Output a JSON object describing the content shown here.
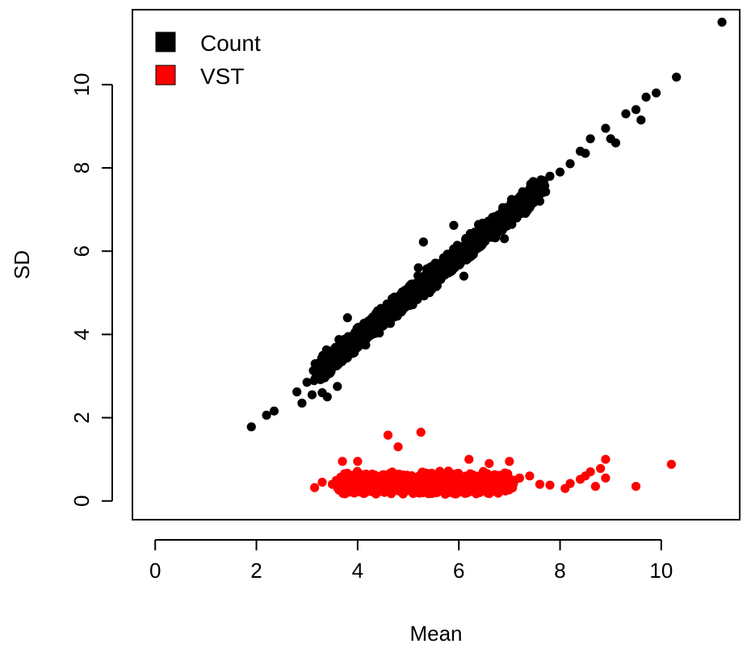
{
  "chart_data": {
    "type": "scatter",
    "xlabel": "Mean",
    "ylabel": "SD",
    "xlim": [
      -0.45,
      11.55
    ],
    "ylim": [
      -0.45,
      11.8
    ],
    "x_ticks": [
      0,
      2,
      4,
      6,
      8,
      10
    ],
    "y_ticks": [
      0,
      2,
      4,
      6,
      8,
      10
    ],
    "grid": false,
    "legend_position": "top-left",
    "series": [
      {
        "name": "Count",
        "color": "#000000",
        "marker": "circle",
        "relation": "SD approximately equals Mean minus 0.1; dense band from Mean 3.3 to 7.5",
        "points": [
          [
            1.9,
            1.78
          ],
          [
            2.2,
            2.06
          ],
          [
            2.35,
            2.16
          ],
          [
            2.8,
            2.62
          ],
          [
            2.9,
            2.35
          ],
          [
            3.0,
            2.85
          ],
          [
            3.1,
            2.55
          ],
          [
            3.2,
            3.0
          ],
          [
            3.3,
            2.6
          ],
          [
            3.4,
            2.5
          ],
          [
            3.6,
            2.75
          ],
          [
            3.8,
            4.4
          ],
          [
            3.9,
            3.6
          ],
          [
            4.1,
            3.9
          ],
          [
            4.5,
            4.2
          ],
          [
            5.0,
            4.9
          ],
          [
            5.2,
            5.6
          ],
          [
            5.3,
            6.22
          ],
          [
            5.5,
            5.3
          ],
          [
            5.8,
            5.5
          ],
          [
            5.9,
            6.62
          ],
          [
            6.1,
            5.4
          ],
          [
            6.6,
            6.5
          ],
          [
            6.9,
            6.3
          ],
          [
            7.0,
            6.95
          ],
          [
            7.5,
            7.5
          ],
          [
            7.6,
            7.2
          ],
          [
            7.8,
            7.8
          ],
          [
            8.0,
            7.9
          ],
          [
            8.2,
            8.1
          ],
          [
            8.4,
            8.4
          ],
          [
            8.5,
            8.35
          ],
          [
            8.6,
            8.7
          ],
          [
            8.9,
            8.95
          ],
          [
            9.0,
            8.7
          ],
          [
            9.1,
            8.6
          ],
          [
            9.3,
            9.3
          ],
          [
            9.5,
            9.4
          ],
          [
            9.6,
            9.15
          ],
          [
            9.7,
            9.7
          ],
          [
            9.9,
            9.8
          ],
          [
            10.3,
            10.18
          ],
          [
            11.2,
            11.5
          ]
        ],
        "band": [
          [
            3.3,
            3.0
          ],
          [
            7.6,
            7.5
          ]
        ]
      },
      {
        "name": "VST",
        "color": "#ff0000",
        "marker": "circle",
        "relation": "SD roughly constant near 0.4; dense band from Mean 3.7 to 7.0",
        "points": [
          [
            3.15,
            0.32
          ],
          [
            3.3,
            0.45
          ],
          [
            3.5,
            0.4
          ],
          [
            3.7,
            0.95
          ],
          [
            4.0,
            0.95
          ],
          [
            4.6,
            1.58
          ],
          [
            4.8,
            1.3
          ],
          [
            5.25,
            1.65
          ],
          [
            5.1,
            0.2
          ],
          [
            6.2,
            1.0
          ],
          [
            6.6,
            0.9
          ],
          [
            7.0,
            0.95
          ],
          [
            7.2,
            0.55
          ],
          [
            7.4,
            0.6
          ],
          [
            7.6,
            0.4
          ],
          [
            7.8,
            0.38
          ],
          [
            8.1,
            0.3
          ],
          [
            8.2,
            0.42
          ],
          [
            8.4,
            0.52
          ],
          [
            8.5,
            0.6
          ],
          [
            8.6,
            0.7
          ],
          [
            8.7,
            0.35
          ],
          [
            8.8,
            0.78
          ],
          [
            8.9,
            1.0
          ],
          [
            8.9,
            0.55
          ],
          [
            9.5,
            0.35
          ],
          [
            10.2,
            0.88
          ]
        ],
        "band": [
          [
            3.7,
            0.45
          ],
          [
            7.0,
            0.45
          ]
        ]
      }
    ]
  }
}
